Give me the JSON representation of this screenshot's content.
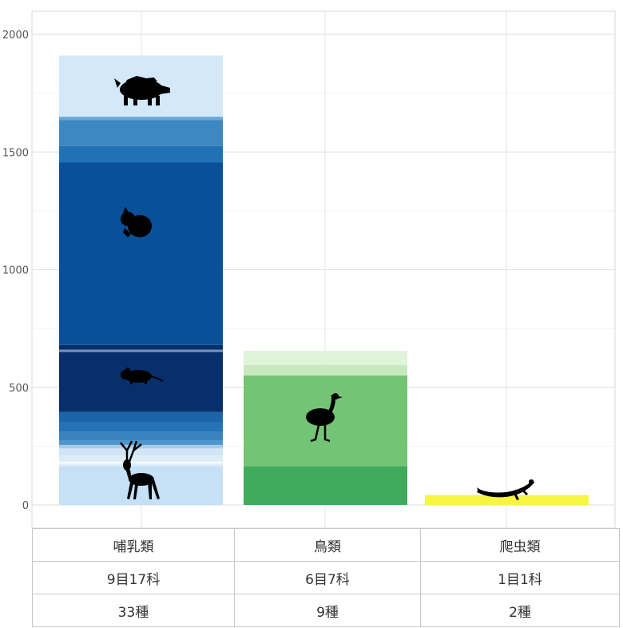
{
  "chart_data": {
    "type": "bar",
    "stacked": true,
    "ylim": [
      0,
      2000
    ],
    "yticks": [
      0,
      500,
      1000,
      1500,
      2000
    ],
    "grid": true,
    "categories": [
      "哺乳類",
      "鳥類",
      "爬虫類"
    ],
    "bars": [
      {
        "category": "哺乳類",
        "icons": [
          "boar-icon",
          "squirrel-icon",
          "mouse-icon",
          "deer-icon"
        ],
        "segments": [
          {
            "from": 0,
            "to": 165,
            "color": "#c6e0f6"
          },
          {
            "from": 165,
            "to": 175,
            "color": "#deedf8"
          },
          {
            "from": 175,
            "to": 185,
            "color": "#f3f8fc"
          },
          {
            "from": 185,
            "to": 210,
            "color": "#deecf9"
          },
          {
            "from": 210,
            "to": 240,
            "color": "#d0e6f6"
          },
          {
            "from": 240,
            "to": 255,
            "color": "#a9cbe9"
          },
          {
            "from": 255,
            "to": 275,
            "color": "#4f96cc"
          },
          {
            "from": 275,
            "to": 310,
            "color": "#3a83c1"
          },
          {
            "from": 310,
            "to": 350,
            "color": "#2473b6"
          },
          {
            "from": 350,
            "to": 395,
            "color": "#1b64a9"
          },
          {
            "from": 395,
            "to": 650,
            "color": "#082f6b"
          },
          {
            "from": 650,
            "to": 660,
            "color": "#7391b8"
          },
          {
            "from": 660,
            "to": 680,
            "color": "#08306b"
          },
          {
            "from": 680,
            "to": 1455,
            "color": "#08509a"
          },
          {
            "from": 1455,
            "to": 1525,
            "color": "#2171b5"
          },
          {
            "from": 1525,
            "to": 1635,
            "color": "#3d87c2"
          },
          {
            "from": 1635,
            "to": 1650,
            "color": "#6aa8d6"
          },
          {
            "from": 1650,
            "to": 1910,
            "color": "#d3e8f8"
          }
        ]
      },
      {
        "category": "鳥類",
        "icons": [
          "emu-icon"
        ],
        "segments": [
          {
            "from": 0,
            "to": 165,
            "color": "#41ab5d"
          },
          {
            "from": 165,
            "to": 550,
            "color": "#74c476"
          },
          {
            "from": 550,
            "to": 595,
            "color": "#c7e9c0"
          },
          {
            "from": 595,
            "to": 655,
            "color": "#e0f3db"
          }
        ]
      },
      {
        "category": "爬虫類",
        "icons": [
          "lizard-icon"
        ],
        "segments": [
          {
            "from": 0,
            "to": 42,
            "color": "#f5f542"
          }
        ]
      }
    ]
  },
  "table": {
    "rows": [
      [
        "哺乳類",
        "鳥類",
        "爬虫類"
      ],
      [
        "9目17科",
        "6目7科",
        "1目1科"
      ],
      [
        "33種",
        "9種",
        "2種"
      ]
    ]
  }
}
